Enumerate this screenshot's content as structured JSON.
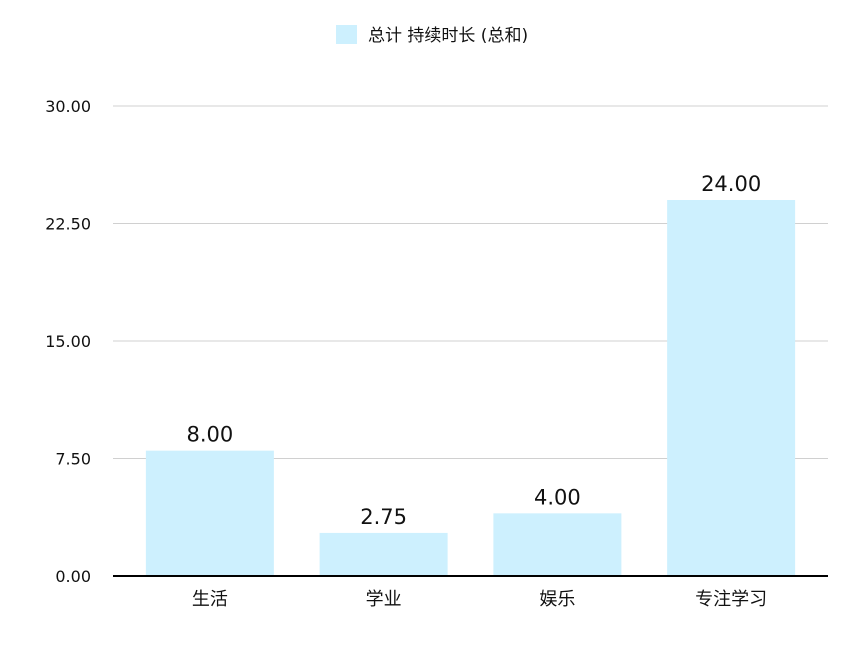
{
  "chart_data": {
    "type": "bar",
    "categories": [
      "生活",
      "学业",
      "娱乐",
      "专注学习"
    ],
    "series": [
      {
        "name": "总计 持续时长 (总和)",
        "values": [
          8.0,
          2.75,
          4.0,
          24.0
        ]
      }
    ],
    "data_labels": [
      "8.00",
      "2.75",
      "4.00",
      "24.00"
    ],
    "y_ticks": [
      "0.00",
      "7.50",
      "15.00",
      "22.50",
      "30.00"
    ],
    "ylim": [
      0,
      30
    ],
    "grid": true,
    "legend": "top-center",
    "bar_color": "#cdf0fe",
    "grid_color": "#d0d0d0",
    "axis_color": "#000000"
  }
}
